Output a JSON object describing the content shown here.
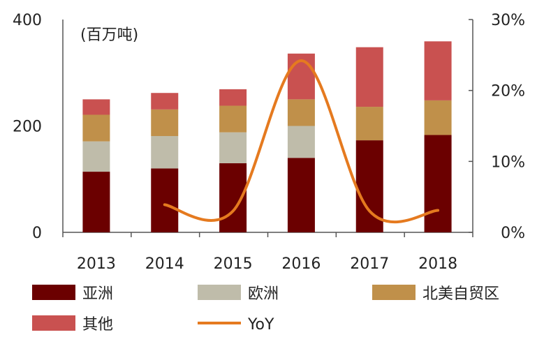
{
  "chart_data": {
    "type": "bar",
    "stacked": true,
    "categories": [
      "2013",
      "2014",
      "2015",
      "2016",
      "2017",
      "2018"
    ],
    "unit_label": "(百万吨)",
    "ylim": [
      0,
      400
    ],
    "yticks": [
      "0",
      "200",
      "400"
    ],
    "y2lim": [
      0,
      30
    ],
    "y2ticks": [
      "0%",
      "10%",
      "20%",
      "30%"
    ],
    "series": [
      {
        "name": "亚洲",
        "color": "#6b0000",
        "values": [
          114,
          120,
          130,
          140,
          173,
          183
        ]
      },
      {
        "name": "欧洲",
        "color": "#bfbcaa",
        "values": [
          57,
          61,
          58,
          60,
          0,
          0
        ]
      },
      {
        "name": "北美自贸区",
        "color": "#c0904a",
        "values": [
          50,
          50,
          50,
          50,
          63,
          65
        ]
      },
      {
        "name": "其他",
        "color": "#c95150",
        "values": [
          29,
          31,
          31,
          86,
          112,
          111
        ]
      }
    ],
    "line": {
      "name": "YoY",
      "color": "#e57a1f",
      "axis": "right",
      "values": [
        null,
        3.9,
        3.0,
        24.2,
        3.0,
        3.1
      ]
    },
    "legend_position": "bottom"
  }
}
